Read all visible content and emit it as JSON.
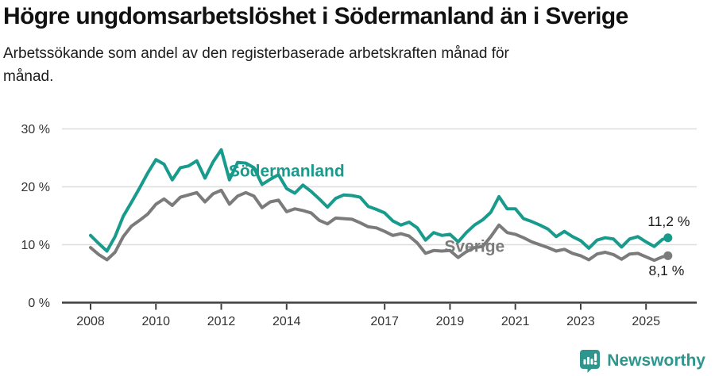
{
  "header": {
    "title": "Högre ungdomsarbetslöshet i Södermanland än i Sverige",
    "subtitle": "Arbetssökande som andel av den registerbaserade arbetskraften månad för månad."
  },
  "chart_data": {
    "type": "line",
    "title": "Högre ungdomsarbetslöshet i Södermanland än i Sverige",
    "subtitle": "Arbetssökande som andel av den registerbaserade arbetskraften månad för månad.",
    "unit": "%",
    "grid": "horizontal-only",
    "x_axis": {
      "range": [
        2008,
        2025.8
      ],
      "ticks": [
        {
          "value": 2008,
          "label": "2008"
        },
        {
          "value": 2010,
          "label": "2010"
        },
        {
          "value": 2012,
          "label": "2012"
        },
        {
          "value": 2014,
          "label": "2014"
        },
        {
          "value": 2017,
          "label": "2017"
        },
        {
          "value": 2019,
          "label": "2019"
        },
        {
          "value": 2021,
          "label": "2021"
        },
        {
          "value": 2023,
          "label": "2023"
        },
        {
          "value": 2025,
          "label": "2025"
        }
      ]
    },
    "y_axis": {
      "range": [
        0,
        30
      ],
      "gridlines": [
        10,
        20,
        30
      ],
      "ticks": [
        {
          "value": 30,
          "label": "30 %"
        },
        {
          "value": 20,
          "label": "20 %"
        },
        {
          "value": 10,
          "label": "10 %"
        },
        {
          "value": 0,
          "label": "0 %"
        }
      ]
    },
    "series": [
      {
        "name": "Södermanland",
        "color": "#189b8d",
        "end_value": 11.2,
        "end_label": "11,2 %",
        "label_pos": [
          2014.0,
          21.8
        ],
        "label_anchor": "middle",
        "value_label_pos": [
          2025.05,
          13.2
        ],
        "points": [
          [
            2008.0,
            11.6
          ],
          [
            2008.25,
            10.2
          ],
          [
            2008.5,
            8.9
          ],
          [
            2008.75,
            11.4
          ],
          [
            2009.0,
            14.9
          ],
          [
            2009.25,
            17.3
          ],
          [
            2009.5,
            19.8
          ],
          [
            2009.75,
            22.4
          ],
          [
            2010.0,
            24.7
          ],
          [
            2010.25,
            23.9
          ],
          [
            2010.5,
            21.2
          ],
          [
            2010.75,
            23.3
          ],
          [
            2011.0,
            23.6
          ],
          [
            2011.25,
            24.5
          ],
          [
            2011.5,
            21.5
          ],
          [
            2011.75,
            24.3
          ],
          [
            2012.0,
            26.4
          ],
          [
            2012.25,
            21.2
          ],
          [
            2012.5,
            24.2
          ],
          [
            2012.75,
            24.1
          ],
          [
            2013.0,
            23.3
          ],
          [
            2013.25,
            20.4
          ],
          [
            2013.5,
            21.3
          ],
          [
            2013.75,
            22.1
          ],
          [
            2014.0,
            19.7
          ],
          [
            2014.25,
            18.9
          ],
          [
            2014.5,
            20.3
          ],
          [
            2014.75,
            19.2
          ],
          [
            2015.0,
            17.9
          ],
          [
            2015.25,
            16.5
          ],
          [
            2015.5,
            18.0
          ],
          [
            2015.75,
            18.6
          ],
          [
            2016.0,
            18.5
          ],
          [
            2016.25,
            18.2
          ],
          [
            2016.5,
            16.6
          ],
          [
            2016.75,
            16.1
          ],
          [
            2017.0,
            15.5
          ],
          [
            2017.25,
            14.1
          ],
          [
            2017.5,
            13.4
          ],
          [
            2017.75,
            13.9
          ],
          [
            2018.0,
            12.9
          ],
          [
            2018.25,
            10.8
          ],
          [
            2018.5,
            12.1
          ],
          [
            2018.75,
            11.6
          ],
          [
            2019.0,
            11.8
          ],
          [
            2019.25,
            10.5
          ],
          [
            2019.5,
            12.1
          ],
          [
            2019.75,
            13.4
          ],
          [
            2020.0,
            14.3
          ],
          [
            2020.25,
            15.6
          ],
          [
            2020.5,
            18.3
          ],
          [
            2020.75,
            16.2
          ],
          [
            2021.0,
            16.2
          ],
          [
            2021.25,
            14.5
          ],
          [
            2021.5,
            14.0
          ],
          [
            2021.75,
            13.4
          ],
          [
            2022.0,
            12.7
          ],
          [
            2022.25,
            11.4
          ],
          [
            2022.5,
            12.3
          ],
          [
            2022.75,
            11.4
          ],
          [
            2023.0,
            10.7
          ],
          [
            2023.25,
            9.4
          ],
          [
            2023.5,
            10.8
          ],
          [
            2023.75,
            11.2
          ],
          [
            2024.0,
            11.0
          ],
          [
            2024.25,
            9.6
          ],
          [
            2024.5,
            11.0
          ],
          [
            2024.75,
            11.4
          ],
          [
            2025.0,
            10.5
          ],
          [
            2025.25,
            9.7
          ],
          [
            2025.5,
            10.9
          ],
          [
            2025.67,
            11.2
          ]
        ]
      },
      {
        "name": "Sverige",
        "color": "#7b7b7b",
        "end_value": 8.1,
        "end_label": "8,1 %",
        "label_pos": [
          2019.75,
          8.8
        ],
        "label_anchor": "middle",
        "value_label_pos": [
          2025.08,
          4.7
        ],
        "points": [
          [
            2008.0,
            9.5
          ],
          [
            2008.25,
            8.3
          ],
          [
            2008.5,
            7.4
          ],
          [
            2008.75,
            8.7
          ],
          [
            2009.0,
            11.4
          ],
          [
            2009.25,
            13.2
          ],
          [
            2009.5,
            14.2
          ],
          [
            2009.75,
            15.3
          ],
          [
            2010.0,
            17.0
          ],
          [
            2010.25,
            17.9
          ],
          [
            2010.5,
            16.8
          ],
          [
            2010.75,
            18.2
          ],
          [
            2011.0,
            18.6
          ],
          [
            2011.25,
            19.0
          ],
          [
            2011.5,
            17.4
          ],
          [
            2011.75,
            18.8
          ],
          [
            2012.0,
            19.4
          ],
          [
            2012.25,
            17.0
          ],
          [
            2012.5,
            18.4
          ],
          [
            2012.75,
            19.0
          ],
          [
            2013.0,
            18.4
          ],
          [
            2013.25,
            16.4
          ],
          [
            2013.5,
            17.4
          ],
          [
            2013.75,
            17.7
          ],
          [
            2014.0,
            15.7
          ],
          [
            2014.25,
            16.2
          ],
          [
            2014.5,
            15.9
          ],
          [
            2014.75,
            15.5
          ],
          [
            2015.0,
            14.2
          ],
          [
            2015.25,
            13.6
          ],
          [
            2015.5,
            14.6
          ],
          [
            2015.75,
            14.5
          ],
          [
            2016.0,
            14.4
          ],
          [
            2016.25,
            13.8
          ],
          [
            2016.5,
            13.1
          ],
          [
            2016.75,
            12.9
          ],
          [
            2017.0,
            12.3
          ],
          [
            2017.25,
            11.6
          ],
          [
            2017.5,
            11.9
          ],
          [
            2017.75,
            11.5
          ],
          [
            2018.0,
            10.3
          ],
          [
            2018.25,
            8.5
          ],
          [
            2018.5,
            9.0
          ],
          [
            2018.75,
            8.9
          ],
          [
            2019.0,
            9.0
          ],
          [
            2019.25,
            7.8
          ],
          [
            2019.5,
            8.8
          ],
          [
            2019.75,
            9.5
          ],
          [
            2020.0,
            9.7
          ],
          [
            2020.25,
            11.4
          ],
          [
            2020.5,
            13.4
          ],
          [
            2020.75,
            12.1
          ],
          [
            2021.0,
            11.8
          ],
          [
            2021.25,
            11.2
          ],
          [
            2021.5,
            10.5
          ],
          [
            2021.75,
            10.0
          ],
          [
            2022.0,
            9.5
          ],
          [
            2022.25,
            8.9
          ],
          [
            2022.5,
            9.2
          ],
          [
            2022.75,
            8.5
          ],
          [
            2023.0,
            8.1
          ],
          [
            2023.25,
            7.4
          ],
          [
            2023.5,
            8.4
          ],
          [
            2023.75,
            8.7
          ],
          [
            2024.0,
            8.3
          ],
          [
            2024.25,
            7.5
          ],
          [
            2024.5,
            8.4
          ],
          [
            2024.75,
            8.5
          ],
          [
            2025.0,
            7.9
          ],
          [
            2025.25,
            7.3
          ],
          [
            2025.5,
            7.9
          ],
          [
            2025.67,
            8.1
          ]
        ]
      }
    ]
  },
  "footer": {
    "brand": "Newsworthy",
    "brand_color": "#2f968e",
    "logo_icon": "bar-chart-speech-bubble"
  }
}
